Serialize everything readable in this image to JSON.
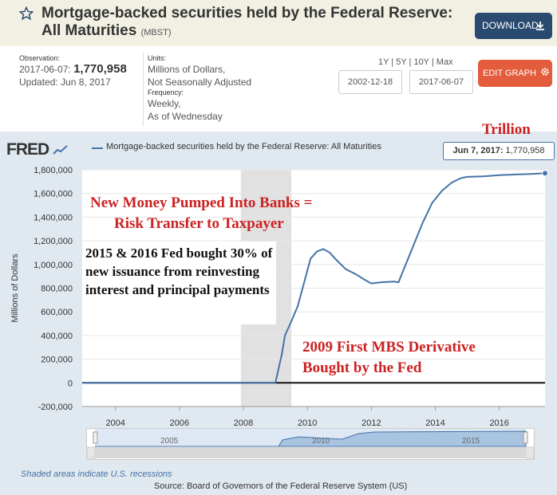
{
  "header": {
    "title": "Mortgage-backed securities held by the Federal Reserve: All Maturities",
    "series_code": "(MBST)",
    "download_label": "DOWNLOAD"
  },
  "observation": {
    "label": "Observation:",
    "date": "2017-06-07:",
    "value": "1,770,958",
    "updated": "Updated: Jun 8, 2017"
  },
  "units": {
    "label": "Units:",
    "line1": "Millions of Dollars,",
    "line2": "Not Seasonally Adjusted",
    "freq_label": "Frequency:",
    "freq1": "Weekly,",
    "freq2": "As of Wednesday"
  },
  "range": {
    "links": "1Y | 5Y | 10Y | Max",
    "start": "2002-12-18",
    "end": "2017-06-07",
    "edit_label": "EDIT GRAPH"
  },
  "legend": {
    "logo": "FRED",
    "series": "Mortgage-backed securities held by the Federal Reserve: All Maturities"
  },
  "tooltip": {
    "date": "Jun 7, 2017:",
    "value": "1,770,958"
  },
  "annotations": {
    "trillion": "Trillion",
    "headline1": "New Money Pumped Into Banks =",
    "headline2": "Risk Transfer to Taxpayer",
    "box": "2015 & 2016 Fed bought 30% of new issuance from reinvesting interest and principal payments",
    "first1": "2009 First MBS Derivative",
    "first2": "Bought by the Fed"
  },
  "navigator": {
    "labels": [
      "2005",
      "2010",
      "2015"
    ]
  },
  "footer": {
    "shaded": "Shaded areas indicate U.S. recessions",
    "source": "Source: Board of Governors of the Federal Reserve System (US)"
  },
  "colors": {
    "series": "#4572a7",
    "annotation_red": "#cc2222",
    "download_bg": "#2b4a6f",
    "edit_bg": "#e35c3c"
  },
  "chart_data": {
    "type": "line",
    "ylabel": "Millions of Dollars",
    "ylim": [
      -200000,
      1800000
    ],
    "xlim": [
      2002.96,
      2017.43
    ],
    "yticks": [
      -200000,
      0,
      200000,
      400000,
      600000,
      800000,
      1000000,
      1200000,
      1400000,
      1600000,
      1800000
    ],
    "ytick_labels": [
      "-200,000",
      "0",
      "200,000",
      "400,000",
      "600,000",
      "800,000",
      "1,000,000",
      "1,200,000",
      "1,400,000",
      "1,600,000",
      "1,800,000"
    ],
    "xticks": [
      "2004",
      "2006",
      "2008",
      "2010",
      "2012",
      "2014",
      "2016"
    ],
    "recession": [
      2007.92,
      2009.5
    ],
    "series": [
      {
        "name": "Mortgage-backed securities held by the Federal Reserve: All Maturities",
        "x": [
          2002.96,
          2008.9,
          2009.0,
          2009.1,
          2009.2,
          2009.3,
          2009.5,
          2009.7,
          2009.9,
          2010.1,
          2010.3,
          2010.5,
          2010.7,
          2010.9,
          2011.2,
          2011.5,
          2011.8,
          2012.0,
          2012.3,
          2012.7,
          2012.85,
          2013.0,
          2013.3,
          2013.6,
          2013.9,
          2014.2,
          2014.5,
          2014.8,
          2015.0,
          2015.5,
          2016.0,
          2016.5,
          2017.0,
          2017.43
        ],
        "y": [
          0,
          0,
          0,
          120000,
          240000,
          400000,
          520000,
          650000,
          850000,
          1050000,
          1110000,
          1130000,
          1100000,
          1040000,
          960000,
          920000,
          870000,
          840000,
          850000,
          855000,
          850000,
          950000,
          1150000,
          1350000,
          1520000,
          1620000,
          1690000,
          1730000,
          1740000,
          1745000,
          1755000,
          1760000,
          1765000,
          1770958
        ]
      }
    ]
  }
}
